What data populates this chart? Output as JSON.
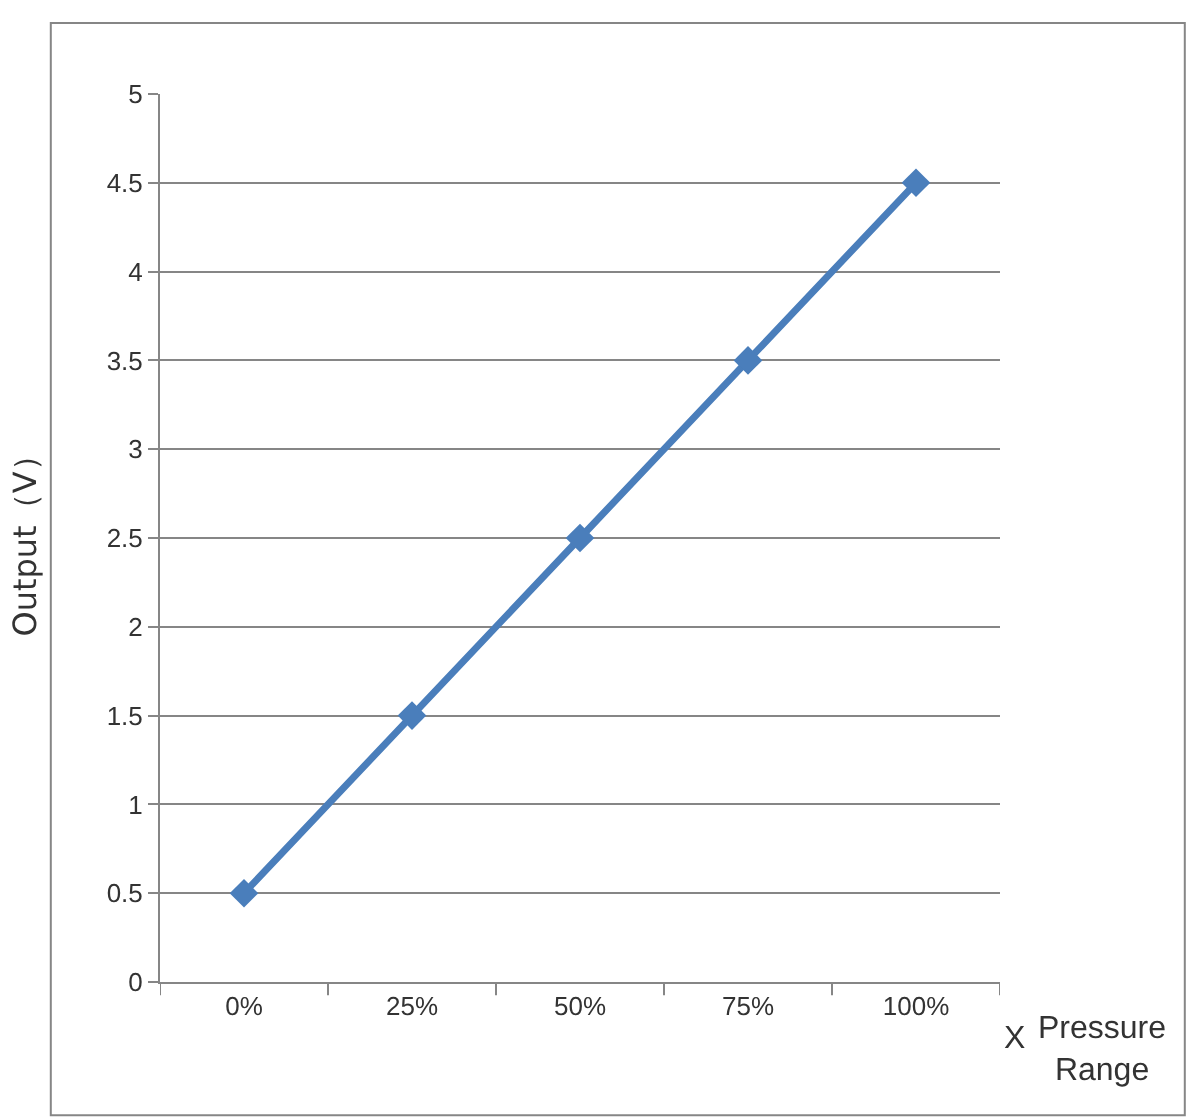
{
  "chart_data": {
    "type": "line",
    "categories": [
      "0%",
      "25%",
      "50%",
      "75%",
      "100%"
    ],
    "series": [
      {
        "color": "#4a7ebb",
        "values": [
          0.5,
          1.5,
          2.5,
          3.5,
          4.5
        ]
      }
    ],
    "ylim": [
      0,
      5
    ],
    "yticks": [
      0,
      0.5,
      1,
      1.5,
      2,
      2.5,
      3,
      3.5,
      4,
      4.5,
      5
    ],
    "ylabel": "Output（V）",
    "xlabel": "Pressure Range",
    "annotations": [
      "X"
    ],
    "grid": "y",
    "marker": "diamond",
    "line_style": "solid"
  }
}
